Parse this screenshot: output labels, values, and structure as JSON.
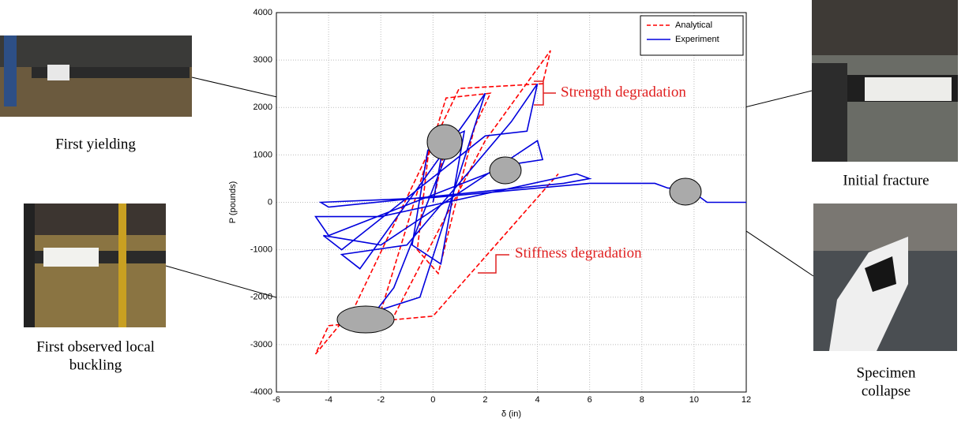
{
  "chart_data": {
    "type": "line",
    "xlabel": "δ (in)",
    "ylabel": "P (pounds)",
    "xlim": [
      -6,
      12
    ],
    "xticks": [
      -6,
      -4,
      -2,
      0,
      2,
      4,
      6,
      8,
      10,
      12
    ],
    "ylim": [
      -4000,
      4000
    ],
    "yticks": [
      -4000,
      -3000,
      -2000,
      -1000,
      0,
      1000,
      2000,
      3000,
      4000
    ],
    "grid": true,
    "legend": "top-right",
    "series": [
      {
        "name": "Analytical",
        "color": "#ff0000",
        "dashed": true,
        "x": [
          0,
          0.6,
          -0.1,
          -0.6,
          0.2,
          1.6,
          2.2,
          0.5,
          -2.0,
          -2.8,
          -1.5,
          2.0,
          4.5,
          4.2,
          1.0,
          -3.0,
          -4.5,
          -4.0,
          0,
          4.8
        ],
        "values": [
          0,
          1500,
          1400,
          -1000,
          -1500,
          1600,
          2300,
          2200,
          -2300,
          -2500,
          -2400,
          1300,
          3200,
          2500,
          2400,
          -2200,
          -3200,
          -2600,
          -2400,
          600
        ]
      },
      {
        "name": "Experiment",
        "color": "#0000dd",
        "dashed": false,
        "x": [
          0,
          0.4,
          -0.2,
          -0.8,
          0.3,
          1.2,
          0.8,
          -1.5,
          -2.2,
          -0.5,
          2.0,
          1.5,
          -2.8,
          -3.5,
          -1.0,
          3.0,
          4.0,
          3.6,
          2.0,
          -3.5,
          -4.2,
          -2.0,
          4.0,
          4.2,
          3.0,
          -4.0,
          -4.5,
          -2.0,
          5.5,
          6.0,
          5.0,
          -4.0,
          -4.3,
          0,
          6.0,
          8.5,
          9.0,
          9.8,
          10.0,
          10.5,
          12
        ],
        "values": [
          0,
          1200,
          1100,
          -900,
          -1300,
          1500,
          1400,
          -1800,
          -2300,
          -2000,
          2300,
          1900,
          -1400,
          -1100,
          -900,
          1700,
          2500,
          1500,
          1400,
          -1000,
          -700,
          -900,
          1300,
          900,
          800,
          -700,
          -300,
          -300,
          600,
          500,
          400,
          -100,
          0,
          100,
          400,
          400,
          300,
          300,
          200,
          0,
          0
        ]
      }
    ]
  },
  "annotations": {
    "strength": "Strength degradation",
    "stiffness": "Stiffness degradation"
  },
  "captions": {
    "yielding": [
      "First yielding"
    ],
    "buckling": [
      "First observed local",
      "buckling"
    ],
    "fracture": [
      "Initial fracture"
    ],
    "collapse": [
      "Specimen",
      "collapse"
    ]
  }
}
